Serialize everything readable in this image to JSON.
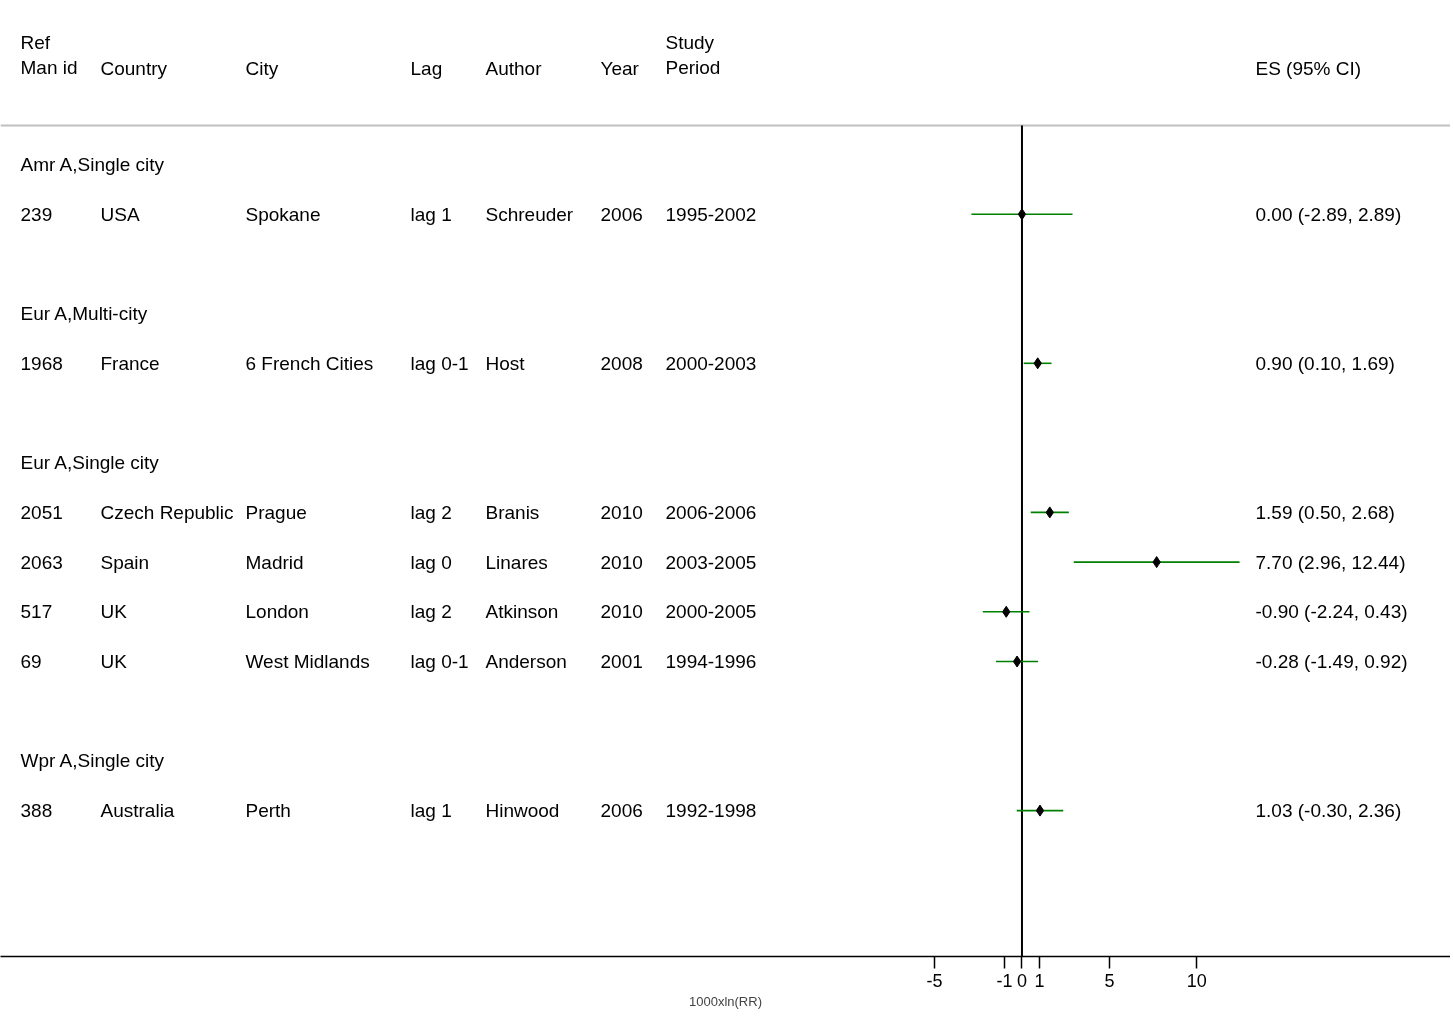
{
  "chart_data": {
    "type": "scatter",
    "orientation": "horizontal",
    "marker": "diamond",
    "color": "#000000",
    "xlabel": "1000xln(RR)",
    "xlim": [
      -58.4,
      24.5
    ],
    "xticks": [
      -5,
      -1,
      0,
      1,
      5,
      10
    ],
    "categories": [
      "Amr A,Single city",
      "239",
      null,
      "Eur A,Multi-city",
      "1968",
      null,
      "Eur A,Single city",
      "2051",
      "2063",
      "517",
      "69",
      null,
      "Wpr A,Single city",
      "388"
    ],
    "values": [
      null,
      0.0,
      null,
      null,
      0.9,
      null,
      null,
      1.59,
      7.7,
      -0.9,
      -0.28,
      null,
      null,
      1.03
    ],
    "errors": [
      null,
      [
        -2.89,
        2.89
      ],
      null,
      null,
      [
        0.1,
        1.69
      ],
      null,
      null,
      [
        0.5,
        2.68
      ],
      [
        2.96,
        12.44
      ],
      [
        -2.24,
        0.43
      ],
      [
        -1.49,
        0.92
      ],
      null,
      null,
      [
        -0.3,
        2.36
      ]
    ],
    "ref_lines": [
      {
        "axis": "x",
        "value": 0,
        "color": "#000000"
      }
    ],
    "annotations": [
      "Ref\nMan id",
      "Country",
      "City",
      "Lag",
      "Author",
      "Year",
      "Study\nPeriod",
      "ES (95% CI)",
      "USA",
      "Spokane",
      "lag 1",
      "Schreuder",
      "2006",
      "1995-2002",
      "France",
      "6 French Cities",
      "lag 0-1",
      "Host",
      "2008",
      "2000-2003",
      "Czech Republic",
      "Prague",
      "lag 2",
      "Branis",
      "2010",
      "2006-2006",
      "Spain",
      "Madrid",
      "lag 0",
      "Linares",
      "2010",
      "2003-2005",
      "UK",
      "London",
      "lag 2",
      "Atkinson",
      "2010",
      "2000-2005",
      "UK",
      "West Midlands",
      "lag 0-1",
      "Anderson",
      "2001",
      "1994-1996",
      "Australia",
      "Perth",
      "lag 1",
      "Hinwood",
      "2006",
      "1992-1998",
      "0.00 (-2.89, 2.89)",
      "0.90 (0.10, 1.69)",
      "1.59 (0.50, 2.68)",
      "7.70 (2.96, 12.44)",
      "-0.90 (-2.24, 0.43)",
      "-0.28 (-1.49, 0.92)",
      "1.03 (-0.30, 2.36)"
    ]
  }
}
